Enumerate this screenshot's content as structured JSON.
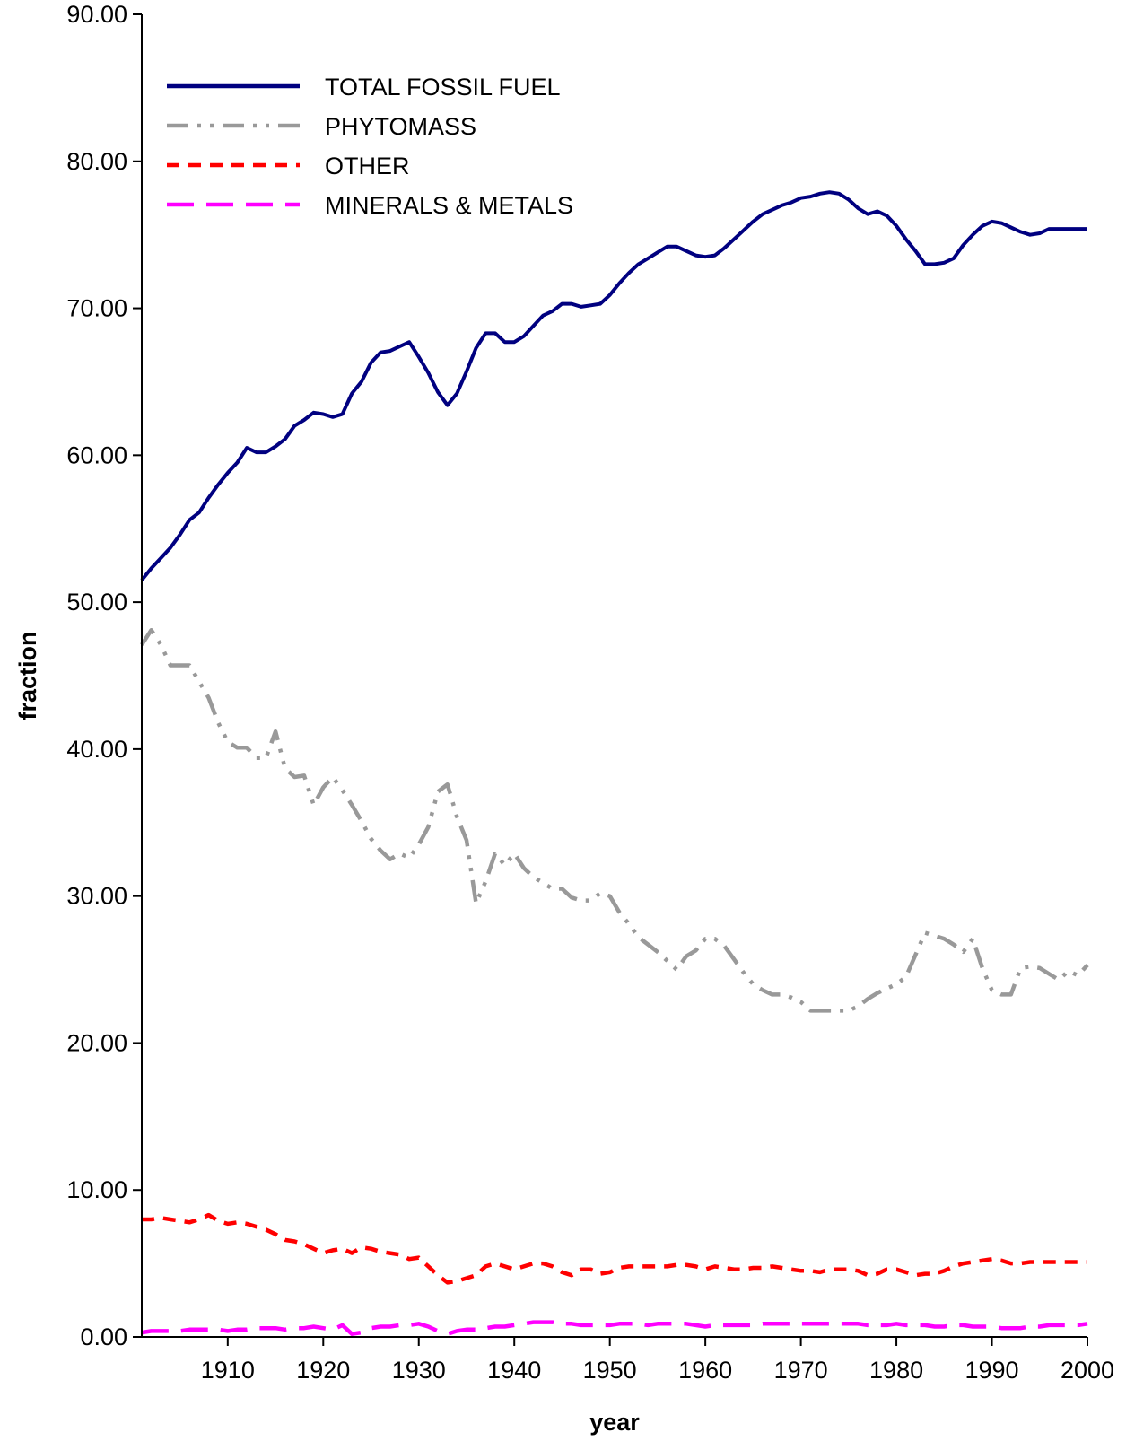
{
  "chart_data": {
    "type": "line",
    "title": "",
    "xlabel": "year",
    "ylabel": "fraction",
    "xlim": [
      1901,
      2000
    ],
    "ylim": [
      0,
      90
    ],
    "x_ticks": [
      "1910",
      "1920",
      "1930",
      "1940",
      "1950",
      "1960",
      "1970",
      "1980",
      "1990",
      "2000"
    ],
    "y_ticks": [
      "0.00",
      "10.00",
      "20.00",
      "30.00",
      "40.00",
      "50.00",
      "60.00",
      "70.00",
      "80.00",
      "90.00"
    ],
    "grid": false,
    "legend_position": "top-left",
    "x": [
      1901,
      1902,
      1903,
      1904,
      1905,
      1906,
      1907,
      1908,
      1909,
      1910,
      1911,
      1912,
      1913,
      1914,
      1915,
      1916,
      1917,
      1918,
      1919,
      1920,
      1921,
      1922,
      1923,
      1924,
      1925,
      1926,
      1927,
      1928,
      1929,
      1930,
      1931,
      1932,
      1933,
      1934,
      1935,
      1936,
      1937,
      1938,
      1939,
      1940,
      1941,
      1942,
      1943,
      1944,
      1945,
      1946,
      1947,
      1948,
      1949,
      1950,
      1951,
      1952,
      1953,
      1954,
      1955,
      1956,
      1957,
      1958,
      1959,
      1960,
      1961,
      1962,
      1963,
      1964,
      1965,
      1966,
      1967,
      1968,
      1969,
      1970,
      1971,
      1972,
      1973,
      1974,
      1975,
      1976,
      1977,
      1978,
      1979,
      1980,
      1981,
      1982,
      1983,
      1984,
      1985,
      1986,
      1987,
      1988,
      1989,
      1990,
      1991,
      1992,
      1993,
      1994,
      1995,
      1996,
      1997,
      1998,
      1999,
      2000
    ],
    "series": [
      {
        "name": "TOTAL FOSSIL FUEL",
        "color": "#000080",
        "dash": "solid",
        "values": [
          51.5,
          52.3,
          53.0,
          53.7,
          54.6,
          55.6,
          56.1,
          57.1,
          58.0,
          58.8,
          59.5,
          60.5,
          60.2,
          60.2,
          60.6,
          61.1,
          62.0,
          62.4,
          62.9,
          62.8,
          62.6,
          62.8,
          64.2,
          65.0,
          66.3,
          67.0,
          67.1,
          67.4,
          67.7,
          66.7,
          65.6,
          64.3,
          63.4,
          64.2,
          65.7,
          67.3,
          68.3,
          68.3,
          67.7,
          67.7,
          68.1,
          68.8,
          69.5,
          69.8,
          70.3,
          70.3,
          70.1,
          70.2,
          70.3,
          70.9,
          71.7,
          72.4,
          73.0,
          73.4,
          73.8,
          74.2,
          74.2,
          73.9,
          73.6,
          73.5,
          73.6,
          74.1,
          74.7,
          75.3,
          75.9,
          76.4,
          76.7,
          77.0,
          77.2,
          77.5,
          77.6,
          77.8,
          77.9,
          77.8,
          77.4,
          76.8,
          76.4,
          76.6,
          76.3,
          75.6,
          74.7,
          73.9,
          73.0,
          73.0,
          73.1,
          73.4,
          74.3,
          75.0,
          75.6,
          75.9,
          75.8,
          75.5,
          75.2,
          75.0,
          75.1,
          75.4,
          75.4,
          75.4,
          75.4,
          75.4
        ]
      },
      {
        "name": "PHYTOMASS",
        "color": "#999999",
        "dash": "dash-dot-dot",
        "values": [
          47.1,
          48.1,
          47.1,
          45.7,
          45.7,
          45.7,
          44.6,
          43.5,
          41.8,
          40.5,
          40.1,
          40.1,
          39.4,
          39.4,
          41.2,
          38.7,
          38.1,
          38.2,
          36.2,
          37.4,
          38.1,
          37.2,
          36.2,
          35.1,
          33.9,
          33.1,
          32.5,
          32.9,
          32.6,
          33.5,
          34.7,
          37.1,
          37.6,
          35.4,
          33.8,
          29.5,
          31.0,
          32.9,
          32.1,
          32.9,
          31.9,
          31.3,
          30.9,
          30.5,
          30.5,
          29.9,
          29.7,
          29.7,
          30.2,
          30.0,
          28.9,
          28.1,
          27.2,
          26.7,
          26.2,
          25.6,
          25.0,
          25.9,
          26.3,
          27.1,
          27.1,
          26.6,
          25.7,
          24.8,
          24.0,
          23.6,
          23.3,
          23.3,
          23.1,
          22.8,
          22.2,
          22.2,
          22.2,
          22.2,
          22.2,
          22.5,
          23.0,
          23.4,
          23.7,
          24.0,
          24.5,
          26.0,
          27.5,
          27.3,
          27.1,
          26.7,
          26.2,
          27.1,
          25.1,
          23.6,
          23.3,
          23.3,
          25.1,
          25.2,
          25.1,
          24.7,
          24.3,
          24.9,
          24.6,
          25.3
        ]
      },
      {
        "name": "OTHER",
        "color": "#ff0000",
        "dash": "dashed",
        "values": [
          8.0,
          8.0,
          8.1,
          8.0,
          7.9,
          7.8,
          8.0,
          8.3,
          7.9,
          7.7,
          7.8,
          7.7,
          7.5,
          7.3,
          7.0,
          6.6,
          6.5,
          6.3,
          6.0,
          5.7,
          5.9,
          6.0,
          5.7,
          6.1,
          6.0,
          5.8,
          5.7,
          5.6,
          5.3,
          5.4,
          4.8,
          4.2,
          3.7,
          3.8,
          4.0,
          4.2,
          4.8,
          5.0,
          4.8,
          4.6,
          4.8,
          5.0,
          5.0,
          4.8,
          4.4,
          4.2,
          4.6,
          4.6,
          4.3,
          4.4,
          4.7,
          4.8,
          4.8,
          4.8,
          4.8,
          4.8,
          4.9,
          4.9,
          4.8,
          4.6,
          4.8,
          4.7,
          4.6,
          4.6,
          4.7,
          4.7,
          4.8,
          4.7,
          4.6,
          4.5,
          4.5,
          4.4,
          4.6,
          4.6,
          4.6,
          4.5,
          4.2,
          4.3,
          4.6,
          4.6,
          4.4,
          4.2,
          4.3,
          4.3,
          4.5,
          4.8,
          5.0,
          5.1,
          5.2,
          5.3,
          5.2,
          5.0,
          5.0,
          5.1,
          5.1,
          5.1,
          5.1,
          5.1,
          5.1,
          5.1
        ]
      },
      {
        "name": "MINERALS & METALS",
        "color": "#ff00ff",
        "dash": "long-dash",
        "values": [
          0.3,
          0.4,
          0.4,
          0.4,
          0.4,
          0.5,
          0.5,
          0.5,
          0.5,
          0.4,
          0.5,
          0.5,
          0.6,
          0.6,
          0.6,
          0.5,
          0.6,
          0.6,
          0.7,
          0.6,
          0.5,
          0.8,
          0.2,
          0.3,
          0.6,
          0.7,
          0.7,
          0.8,
          0.8,
          0.9,
          0.7,
          0.4,
          0.2,
          0.4,
          0.5,
          0.5,
          0.6,
          0.7,
          0.7,
          0.8,
          0.9,
          1.0,
          1.0,
          1.0,
          0.9,
          0.9,
          0.8,
          0.8,
          0.8,
          0.8,
          0.9,
          0.9,
          0.9,
          0.8,
          0.9,
          0.9,
          0.9,
          0.9,
          0.8,
          0.7,
          0.8,
          0.8,
          0.8,
          0.8,
          0.8,
          0.9,
          0.9,
          0.9,
          0.9,
          0.9,
          0.9,
          0.9,
          0.9,
          0.9,
          0.9,
          0.9,
          0.8,
          0.8,
          0.8,
          0.9,
          0.8,
          0.8,
          0.8,
          0.7,
          0.7,
          0.8,
          0.8,
          0.7,
          0.7,
          0.7,
          0.6,
          0.6,
          0.6,
          0.7,
          0.7,
          0.8,
          0.8,
          0.8,
          0.8,
          0.9
        ]
      }
    ]
  }
}
